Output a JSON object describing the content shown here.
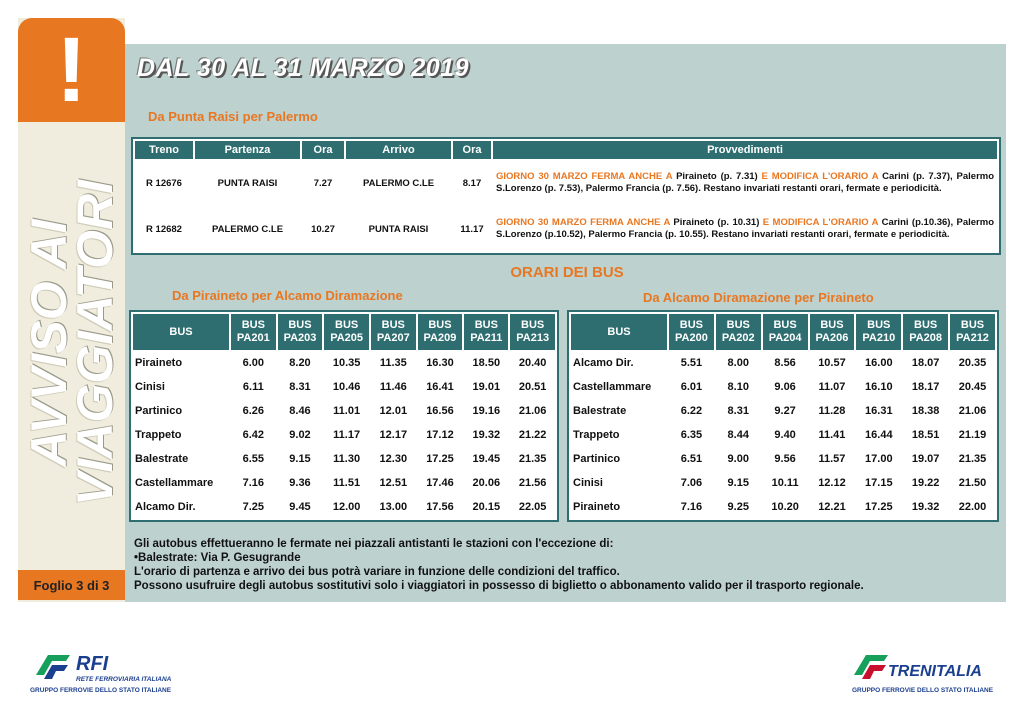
{
  "sidebar": {
    "alert_symbol": "!",
    "vertical_text": "AVVISO AI VIAGGIATORI",
    "vertical_line1": "AVVISO AI",
    "vertical_line2": "VIAGGIATORI",
    "sheet": "Foglio 3 di 3"
  },
  "title": "DAL 30 AL 31 MARZO 2019",
  "train_section": {
    "subtitle": "Da Punta Raisi per Palermo",
    "headers": [
      "Treno",
      "Partenza",
      "Ora",
      "Arrivo",
      "Ora",
      "Provvedimenti"
    ],
    "rows": [
      {
        "treno": "R 12676",
        "partenza": "PUNTA RAISI",
        "ora_partenza": "7.27",
        "arrivo": "PALERMO C.LE",
        "ora_arrivo": "8.17",
        "prov_a": "GIORNO 30 MARZO FERMA ANCHE A ",
        "prov_b": " Piraineto (p. 7.31) ",
        "prov_c": "E MODIFICA L'ORARIO A",
        "prov_d": " Carini (p. 7.37), Palermo S.Lorenzo (p. 7.53), Palermo Francia (p. 7.56). Restano invariati restanti orari, fermate e periodicità."
      },
      {
        "treno": "R 12682",
        "partenza": "PALERMO C.LE",
        "ora_partenza": "10.27",
        "arrivo": "PUNTA RAISI",
        "ora_arrivo": "11.17",
        "prov_a": "GIORNO 30 MARZO FERMA ANCHE A",
        "prov_b": " Piraineto (p. 10.31) ",
        "prov_c": "E MODIFICA L'ORARIO A",
        "prov_d": " Carini (p.10.36), Palermo S.Lorenzo (p.10.52), Palermo Francia (p. 10.55). Restano invariati restanti orari, fermate e periodicità."
      }
    ]
  },
  "bus_title": "ORARI DEI BUS",
  "bus_left": {
    "subtitle": "Da Piraineto per  Alcamo Diramazione",
    "stop_header": "BUS",
    "headers": [
      "BUS PA201",
      "BUS PA203",
      "BUS PA205",
      "BUS PA207",
      "BUS PA209",
      "BUS PA211",
      "BUS PA213"
    ],
    "rows": [
      {
        "stop": "Piraineto",
        "times": [
          "6.00",
          "8.20",
          "10.35",
          "11.35",
          "16.30",
          "18.50",
          "20.40"
        ]
      },
      {
        "stop": "Cinisi",
        "times": [
          "6.11",
          "8.31",
          "10.46",
          "11.46",
          "16.41",
          "19.01",
          "20.51"
        ]
      },
      {
        "stop": "Partinico",
        "times": [
          "6.26",
          "8.46",
          "11.01",
          "12.01",
          "16.56",
          "19.16",
          "21.06"
        ]
      },
      {
        "stop": "Trappeto",
        "times": [
          "6.42",
          "9.02",
          "11.17",
          "12.17",
          "17.12",
          "19.32",
          "21.22"
        ]
      },
      {
        "stop": "Balestrate",
        "times": [
          "6.55",
          "9.15",
          "11.30",
          "12.30",
          "17.25",
          "19.45",
          "21.35"
        ]
      },
      {
        "stop": "Castellammare",
        "times": [
          "7.16",
          "9.36",
          "11.51",
          "12.51",
          "17.46",
          "20.06",
          "21.56"
        ]
      },
      {
        "stop": "Alcamo Dir.",
        "times": [
          "7.25",
          "9.45",
          "12.00",
          "13.00",
          "17.56",
          "20.15",
          "22.05"
        ]
      }
    ]
  },
  "bus_right": {
    "subtitle": "Da Alcamo Diramazione per Piraineto",
    "stop_header": "BUS",
    "headers": [
      "BUS PA200",
      "BUS PA202",
      "BUS PA204",
      "BUS PA206",
      "BUS PA210",
      "BUS PA208",
      "BUS PA212"
    ],
    "rows": [
      {
        "stop": "Alcamo Dir.",
        "times": [
          "5.51",
          "8.00",
          "8.56",
          "10.57",
          "16.00",
          "18.07",
          "20.35"
        ]
      },
      {
        "stop": "Castellammare",
        "times": [
          "6.01",
          "8.10",
          "9.06",
          "11.07",
          "16.10",
          "18.17",
          "20.45"
        ]
      },
      {
        "stop": "Balestrate",
        "times": [
          "6.22",
          "8.31",
          "9.27",
          "11.28",
          "16.31",
          "18.38",
          "21.06"
        ]
      },
      {
        "stop": "Trappeto",
        "times": [
          "6.35",
          "8.44",
          "9.40",
          "11.41",
          "16.44",
          "18.51",
          "21.19"
        ]
      },
      {
        "stop": "Partinico",
        "times": [
          "6.51",
          "9.00",
          "9.56",
          "11.57",
          "17.00",
          "19.07",
          "21.35"
        ]
      },
      {
        "stop": "Cinisi",
        "times": [
          "7.06",
          "9.15",
          "10.11",
          "12.12",
          "17.15",
          "19.22",
          "21.50"
        ]
      },
      {
        "stop": "Piraineto",
        "times": [
          "7.16",
          "9.25",
          "10.20",
          "12.21",
          "17.25",
          "19.32",
          "22.00"
        ]
      }
    ]
  },
  "notes": [
    "Gli autobus effettueranno le fermate nei piazzali antistanti le stazioni con l'eccezione di:",
    "•Balestrate: Via P. Gesugrande",
    "L'orario di partenza e arrivo dei bus potrà variare in funzione delle condizioni del traffico.",
    "Possono usufruire degli autobus sostitutivi solo i viaggiatori in possesso di biglietto o abbonamento valido per il trasporto regionale."
  ],
  "logos": {
    "rfi_name": "RFI",
    "rfi_line1": "RETE FERROVIARIA ITALIANA",
    "rfi_line2": "GRUPPO FERROVIE DELLO STATO ITALIANE",
    "trenitalia_name": "TRENITALIA",
    "trenitalia_line": "GRUPPO FERROVIE DELLO STATO ITALIANE"
  },
  "colors": {
    "orange": "#e87722",
    "teal": "#2e6e70",
    "panel": "#bdd1cf",
    "sidebar": "#f0edde",
    "brand_blue": "#1b3f8f",
    "brand_green": "#16a05b"
  }
}
